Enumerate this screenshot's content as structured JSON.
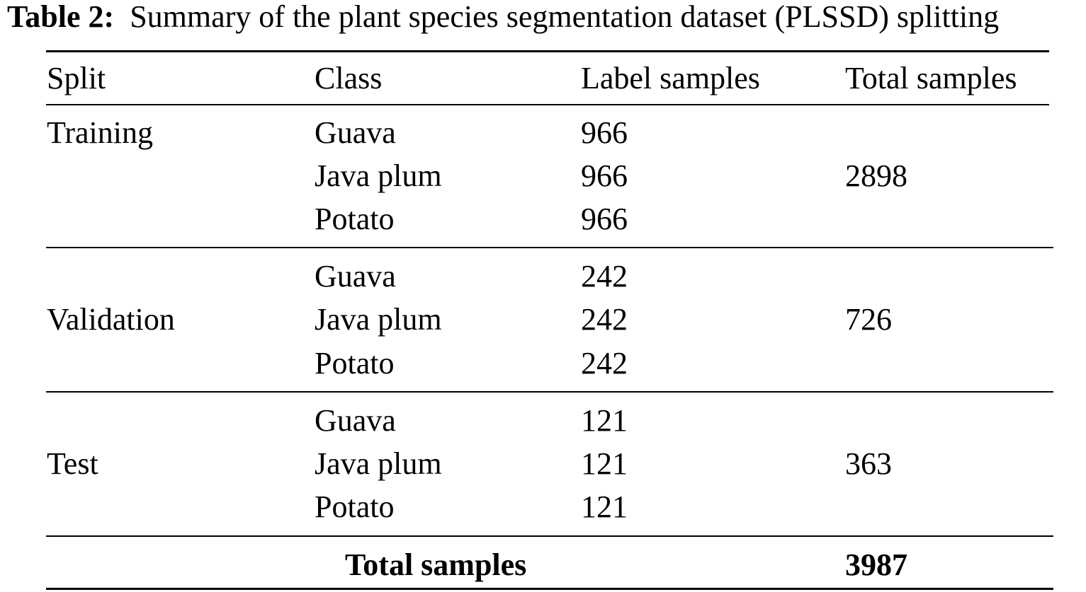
{
  "caption": {
    "label": "Table 2:",
    "text": "Summary of the plant species segmentation dataset (PLSSD) splitting"
  },
  "table": {
    "headers": {
      "split": "Split",
      "class": "Class",
      "label_samples": "Label samples",
      "total_samples": "Total samples"
    },
    "groups": [
      {
        "split": "Training",
        "total": "2898",
        "rows": [
          {
            "class": "Guava",
            "label_samples": "966"
          },
          {
            "class": "Java plum",
            "label_samples": "966"
          },
          {
            "class": "Potato",
            "label_samples": "966"
          }
        ]
      },
      {
        "split": "Validation",
        "total": "726",
        "rows": [
          {
            "class": "Guava",
            "label_samples": "242"
          },
          {
            "class": "Java plum",
            "label_samples": "242"
          },
          {
            "class": "Potato",
            "label_samples": "242"
          }
        ]
      },
      {
        "split": "Test",
        "total": "363",
        "rows": [
          {
            "class": "Guava",
            "label_samples": "121"
          },
          {
            "class": "Java plum",
            "label_samples": "121"
          },
          {
            "class": "Potato",
            "label_samples": "121"
          }
        ]
      }
    ],
    "footer": {
      "label": "Total samples",
      "value": "3987"
    }
  }
}
